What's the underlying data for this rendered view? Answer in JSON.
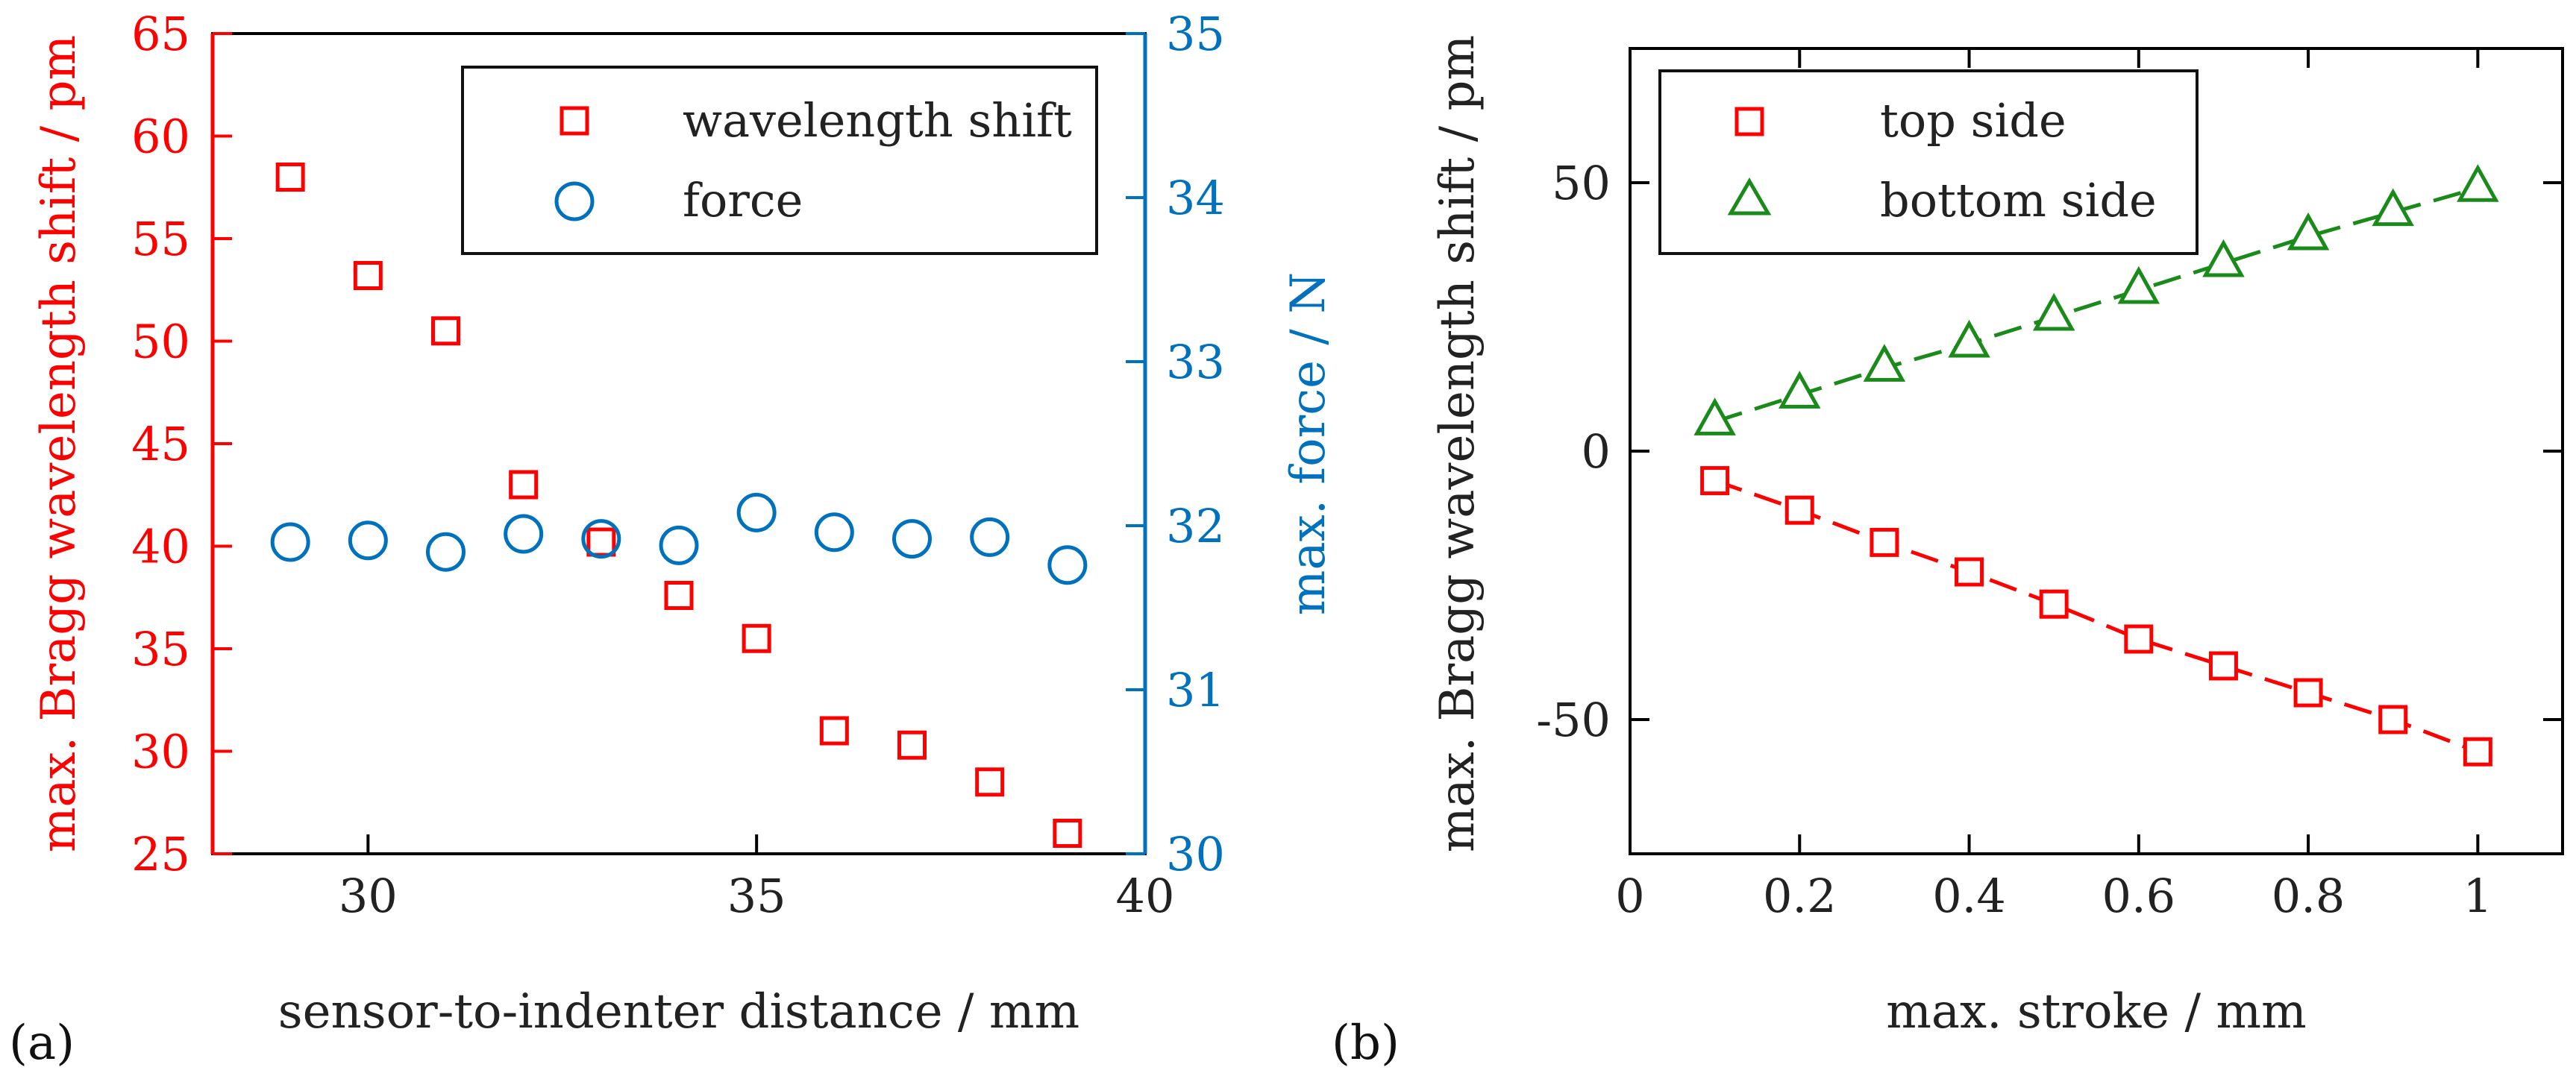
{
  "colors": {
    "red": "#ff0000",
    "blue": "#0072bd",
    "green": "#1a8a1a",
    "axis": "#000000",
    "text": "#222222"
  },
  "panel_labels": {
    "a": "(a)",
    "b": "(b)"
  },
  "chart_data": [
    {
      "id": "a",
      "type": "scatter",
      "title": "",
      "xlabel": "sensor-to-indenter distance / mm",
      "ylabel_left": "max. Bragg wavelength shift / pm",
      "ylabel_right": "max. force / N",
      "xlim": [
        28,
        40
      ],
      "ylim_left": [
        25,
        65
      ],
      "ylim_right": [
        30,
        35
      ],
      "xticks": [
        "30",
        "35",
        "40"
      ],
      "xtick_values": [
        30,
        35,
        40
      ],
      "yticks_left": [
        "25",
        "30",
        "35",
        "40",
        "45",
        "50",
        "55",
        "60",
        "65"
      ],
      "ytick_values_left": [
        25,
        30,
        35,
        40,
        45,
        50,
        55,
        60,
        65
      ],
      "yticks_right": [
        "30",
        "31",
        "32",
        "33",
        "34",
        "35"
      ],
      "ytick_values_right": [
        30,
        31,
        32,
        33,
        34,
        35
      ],
      "legend": {
        "position": "top-right",
        "entries": [
          "wavelength shift",
          "force"
        ]
      },
      "series": [
        {
          "name": "wavelength shift",
          "marker": "square",
          "axis": "left",
          "x": [
            29,
            30,
            31,
            32,
            33,
            34,
            35,
            36,
            37,
            38,
            39
          ],
          "y": [
            58.0,
            53.2,
            50.5,
            43.0,
            40.2,
            37.6,
            35.5,
            31.0,
            30.3,
            28.5,
            26.0
          ]
        },
        {
          "name": "force",
          "marker": "circle",
          "axis": "right",
          "x": [
            29,
            30,
            31,
            32,
            33,
            34,
            35,
            36,
            37,
            38,
            39
          ],
          "y": [
            31.9,
            31.91,
            31.84,
            31.95,
            31.92,
            31.88,
            32.08,
            31.96,
            31.92,
            31.93,
            31.76
          ]
        }
      ]
    },
    {
      "id": "b",
      "type": "line",
      "title": "",
      "xlabel": "max. stroke / mm",
      "ylabel": "max. Bragg wavelength shift / pm",
      "xlim": [
        0,
        1.1
      ],
      "ylim": [
        -75,
        75
      ],
      "xticks": [
        "0",
        "0.2",
        "0.4",
        "0.6",
        "0.8",
        "1"
      ],
      "xtick_values": [
        0,
        0.2,
        0.4,
        0.6,
        0.8,
        1.0
      ],
      "yticks": [
        "-50",
        "0",
        "50"
      ],
      "ytick_values": [
        -50,
        0,
        50
      ],
      "legend": {
        "position": "top-left",
        "entries": [
          "top side",
          "bottom side"
        ]
      },
      "series": [
        {
          "name": "top side",
          "marker": "square",
          "line": "dashed",
          "x": [
            0.1,
            0.2,
            0.3,
            0.4,
            0.5,
            0.6,
            0.7,
            0.8,
            0.9,
            1.0
          ],
          "y": [
            -5.5,
            -11,
            -17,
            -22.5,
            -28.5,
            -35,
            -40,
            -45,
            -50,
            -56
          ]
        },
        {
          "name": "bottom side",
          "marker": "triangle",
          "line": "dashed",
          "x": [
            0.1,
            0.2,
            0.3,
            0.4,
            0.5,
            0.6,
            0.7,
            0.8,
            0.9,
            1.0
          ],
          "y": [
            5.5,
            10.5,
            15.5,
            20,
            25,
            30,
            35,
            40,
            44.5,
            49
          ]
        }
      ]
    }
  ]
}
